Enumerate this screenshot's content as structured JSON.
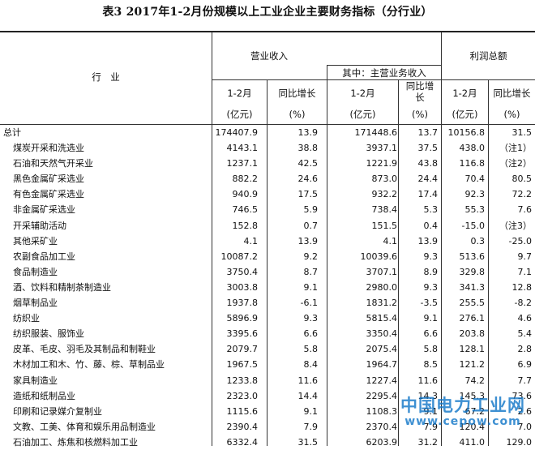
{
  "title": "表3 2017年1-2月份规模以上工业企业主要财务指标（分行业）",
  "headers": {
    "industry": "行　业",
    "revenue_group": "营业收入",
    "main_revenue_group": "其中：主营业务收入",
    "profit_group": "利润总额",
    "period": "1-2月",
    "yoy": "同比增长",
    "yoy_wrapped": "同比增长",
    "unit_amount": "(亿元)",
    "unit_pct": "(%)"
  },
  "rows": [
    {
      "name": "总计",
      "indent": false,
      "rev": "174407.9",
      "rev_yoy": "13.9",
      "main": "171448.6",
      "main_yoy": "13.7",
      "profit": "10156.8",
      "profit_yoy": "31.5"
    },
    {
      "name": "煤炭开采和洗选业",
      "indent": true,
      "rev": "4143.1",
      "rev_yoy": "38.8",
      "main": "3937.1",
      "main_yoy": "37.5",
      "profit": "438.0",
      "profit_yoy": "（注1）"
    },
    {
      "name": "石油和天然气开采业",
      "indent": true,
      "rev": "1237.1",
      "rev_yoy": "42.5",
      "main": "1221.9",
      "main_yoy": "43.8",
      "profit": "116.8",
      "profit_yoy": "（注2）"
    },
    {
      "name": "黑色金属矿采选业",
      "indent": true,
      "rev": "882.2",
      "rev_yoy": "24.6",
      "main": "873.0",
      "main_yoy": "24.4",
      "profit": "70.4",
      "profit_yoy": "80.5"
    },
    {
      "name": "有色金属矿采选业",
      "indent": true,
      "rev": "940.9",
      "rev_yoy": "17.5",
      "main": "932.2",
      "main_yoy": "17.4",
      "profit": "92.3",
      "profit_yoy": "72.2"
    },
    {
      "name": "非金属矿采选业",
      "indent": true,
      "rev": "746.5",
      "rev_yoy": "5.9",
      "main": "738.4",
      "main_yoy": "5.3",
      "profit": "55.3",
      "profit_yoy": "7.6"
    },
    {
      "name": "开采辅助活动",
      "indent": true,
      "rev": "152.8",
      "rev_yoy": "0.7",
      "main": "151.5",
      "main_yoy": "0.4",
      "profit": "-15.0",
      "profit_yoy": "（注3）"
    },
    {
      "name": "其他采矿业",
      "indent": true,
      "rev": "4.1",
      "rev_yoy": "13.9",
      "main": "4.1",
      "main_yoy": "13.9",
      "profit": "0.3",
      "profit_yoy": "-25.0"
    },
    {
      "name": "农副食品加工业",
      "indent": true,
      "rev": "10087.2",
      "rev_yoy": "9.2",
      "main": "10039.6",
      "main_yoy": "9.3",
      "profit": "513.6",
      "profit_yoy": "9.7"
    },
    {
      "name": "食品制造业",
      "indent": true,
      "rev": "3750.4",
      "rev_yoy": "8.7",
      "main": "3707.1",
      "main_yoy": "8.9",
      "profit": "329.8",
      "profit_yoy": "7.1"
    },
    {
      "name": "酒、饮料和精制茶制造业",
      "indent": true,
      "rev": "3003.8",
      "rev_yoy": "9.1",
      "main": "2980.0",
      "main_yoy": "9.3",
      "profit": "341.3",
      "profit_yoy": "12.8"
    },
    {
      "name": "烟草制品业",
      "indent": true,
      "rev": "1937.8",
      "rev_yoy": "-6.1",
      "main": "1831.2",
      "main_yoy": "-3.5",
      "profit": "255.5",
      "profit_yoy": "-8.2"
    },
    {
      "name": "纺织业",
      "indent": true,
      "rev": "5896.9",
      "rev_yoy": "9.3",
      "main": "5815.4",
      "main_yoy": "9.1",
      "profit": "276.1",
      "profit_yoy": "4.6"
    },
    {
      "name": "纺织服装、服饰业",
      "indent": true,
      "rev": "3395.6",
      "rev_yoy": "6.6",
      "main": "3350.4",
      "main_yoy": "6.6",
      "profit": "203.8",
      "profit_yoy": "5.4"
    },
    {
      "name": "皮革、毛皮、羽毛及其制品和制鞋业",
      "indent": true,
      "rev": "2079.7",
      "rev_yoy": "5.8",
      "main": "2075.4",
      "main_yoy": "5.8",
      "profit": "128.1",
      "profit_yoy": "2.8"
    },
    {
      "name": "木材加工和木、竹、藤、棕、草制品业",
      "indent": true,
      "rev": "1967.5",
      "rev_yoy": "8.4",
      "main": "1964.7",
      "main_yoy": "8.5",
      "profit": "121.2",
      "profit_yoy": "6.9"
    },
    {
      "name": "家具制造业",
      "indent": true,
      "rev": "1233.8",
      "rev_yoy": "11.6",
      "main": "1227.4",
      "main_yoy": "11.6",
      "profit": "74.2",
      "profit_yoy": "7.7"
    },
    {
      "name": "造纸和纸制品业",
      "indent": true,
      "rev": "2323.0",
      "rev_yoy": "14.4",
      "main": "2295.4",
      "main_yoy": "14.3",
      "profit": "145.3",
      "profit_yoy": "73.6"
    },
    {
      "name": "印刷和记录媒介复制业",
      "indent": true,
      "rev": "1115.6",
      "rev_yoy": "9.1",
      "main": "1108.3",
      "main_yoy": "9.1",
      "profit": "67.2",
      "profit_yoy": "2.6"
    },
    {
      "name": "文教、工美、体育和娱乐用品制造业",
      "indent": true,
      "rev": "2390.4",
      "rev_yoy": "7.9",
      "main": "2370.4",
      "main_yoy": "7.9",
      "profit": "120.4",
      "profit_yoy": "7.0"
    },
    {
      "name": "石油加工、炼焦和核燃料加工业",
      "indent": true,
      "rev": "6332.4",
      "rev_yoy": "31.5",
      "main": "6203.9",
      "main_yoy": "31.2",
      "profit": "411.0",
      "profit_yoy": "129.0"
    }
  ],
  "watermark": {
    "name": "中国电力工业网",
    "url": "www.cepow.com"
  }
}
